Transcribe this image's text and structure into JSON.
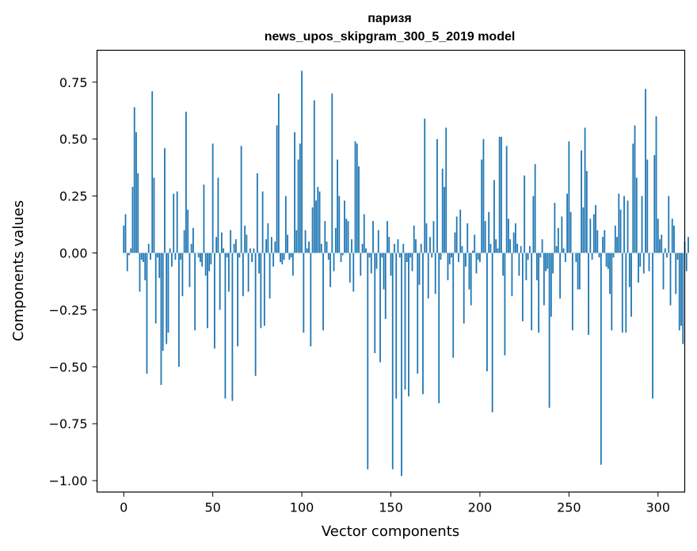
{
  "chart_data": {
    "type": "bar",
    "title": "паризя",
    "subtitle": "news_upos_skipgram_300_5_2019 model",
    "xlabel": "Vector components",
    "ylabel": "Components values",
    "xlim": [
      -15,
      315
    ],
    "ylim": [
      -1.05,
      0.89
    ],
    "xticks": [
      0,
      50,
      100,
      150,
      200,
      250,
      300
    ],
    "yticks": [
      -1.0,
      -0.75,
      -0.5,
      -0.25,
      0.0,
      0.25,
      0.5,
      0.75
    ],
    "ytick_labels": [
      "−1.00",
      "−0.75",
      "−0.50",
      "−0.25",
      "0.00",
      "0.25",
      "0.50",
      "0.75"
    ],
    "grid": false,
    "bar_color": "#1f77b4",
    "values": [
      0.12,
      0.17,
      -0.08,
      -0.01,
      0.02,
      0.29,
      0.64,
      0.53,
      0.35,
      -0.17,
      -0.03,
      -0.04,
      -0.12,
      -0.53,
      0.04,
      -0.03,
      0.71,
      0.33,
      -0.31,
      -0.02,
      -0.11,
      -0.58,
      -0.43,
      0.46,
      -0.4,
      -0.35,
      0.02,
      -0.06,
      0.26,
      -0.03,
      0.27,
      -0.5,
      -0.03,
      -0.19,
      0.1,
      0.62,
      0.19,
      -0.15,
      0.04,
      0.11,
      -0.34,
      0.0,
      -0.02,
      -0.04,
      -0.06,
      0.3,
      -0.1,
      -0.33,
      -0.08,
      -0.05,
      0.48,
      -0.42,
      0.07,
      0.33,
      -0.25,
      0.09,
      0.02,
      -0.64,
      -0.02,
      -0.17,
      0.1,
      -0.65,
      0.04,
      0.06,
      -0.41,
      -0.02,
      0.47,
      -0.19,
      0.12,
      0.08,
      -0.17,
      0.02,
      -0.04,
      0.02,
      -0.54,
      0.35,
      -0.09,
      -0.33,
      0.27,
      -0.32,
      0.06,
      0.13,
      -0.2,
      0.07,
      -0.06,
      0.05,
      0.56,
      0.7,
      -0.04,
      -0.05,
      -0.03,
      0.25,
      0.08,
      -0.03,
      -0.02,
      -0.1,
      0.53,
      0.1,
      0.41,
      0.48,
      0.8,
      -0.35,
      0.1,
      0.02,
      0.05,
      -0.41,
      0.2,
      0.67,
      0.23,
      0.29,
      0.27,
      0.04,
      -0.34,
      0.14,
      0.05,
      -0.03,
      -0.15,
      0.7,
      -0.08,
      0.11,
      0.41,
      0.25,
      -0.04,
      -0.01,
      0.23,
      0.15,
      0.14,
      -0.13,
      0.06,
      -0.17,
      0.49,
      0.48,
      0.38,
      -0.1,
      0.04,
      0.17,
      0.02,
      -0.95,
      -0.02,
      -0.09,
      0.14,
      -0.44,
      -0.07,
      0.1,
      -0.48,
      -0.02,
      -0.16,
      -0.29,
      0.14,
      0.07,
      -0.1,
      -0.95,
      0.04,
      -0.64,
      0.06,
      -0.02,
      -0.98,
      0.04,
      -0.6,
      -0.04,
      -0.63,
      -0.02,
      -0.08,
      0.12,
      0.06,
      -0.53,
      -0.14,
      0.04,
      -0.62,
      0.59,
      0.13,
      -0.2,
      0.07,
      -0.02,
      0.14,
      -0.18,
      0.5,
      -0.66,
      -0.03,
      0.37,
      0.29,
      0.55,
      -0.12,
      -0.05,
      -0.02,
      -0.46,
      0.09,
      0.16,
      -0.04,
      0.19,
      0.03,
      -0.31,
      -0.06,
      0.13,
      -0.16,
      -0.23,
      0.01,
      0.08,
      -0.09,
      -0.03,
      -0.04,
      0.41,
      0.5,
      0.14,
      -0.52,
      0.18,
      0.04,
      -0.7,
      0.32,
      0.06,
      0.02,
      0.51,
      0.51,
      -0.1,
      -0.45,
      0.47,
      0.15,
      0.06,
      -0.19,
      0.09,
      0.13,
      0.04,
      -0.1,
      0.03,
      -0.3,
      0.34,
      -0.12,
      -0.03,
      0.03,
      -0.34,
      0.25,
      0.39,
      -0.12,
      -0.35,
      -0.02,
      0.06,
      -0.23,
      -0.08,
      -0.07,
      -0.68,
      -0.28,
      -0.09,
      0.22,
      0.03,
      0.11,
      -0.2,
      0.16,
      0.02,
      -0.04,
      0.26,
      0.49,
      0.18,
      -0.34,
      0.0,
      -0.04,
      -0.16,
      -0.16,
      0.45,
      0.2,
      0.55,
      0.36,
      -0.36,
      0.15,
      -0.03,
      0.17,
      0.21,
      0.1,
      -0.02,
      -0.93,
      0.07,
      0.1,
      -0.06,
      -0.07,
      -0.18,
      -0.34,
      -0.02,
      0.12,
      0.07,
      0.26,
      0.19,
      -0.35,
      0.25,
      -0.35,
      0.23,
      -0.15,
      -0.28,
      0.48,
      0.56,
      0.33,
      -0.13,
      -0.06,
      0.25,
      -0.09,
      0.72,
      0.41,
      -0.08,
      0.0,
      -0.64,
      0.43,
      0.6,
      0.15,
      0.06,
      0.08,
      -0.16,
      0.02,
      -0.02,
      0.25,
      -0.23,
      0.15,
      0.12,
      -0.18,
      -0.03,
      -0.34,
      -0.32,
      -0.4,
      0.05,
      -0.08,
      0.07
    ]
  }
}
